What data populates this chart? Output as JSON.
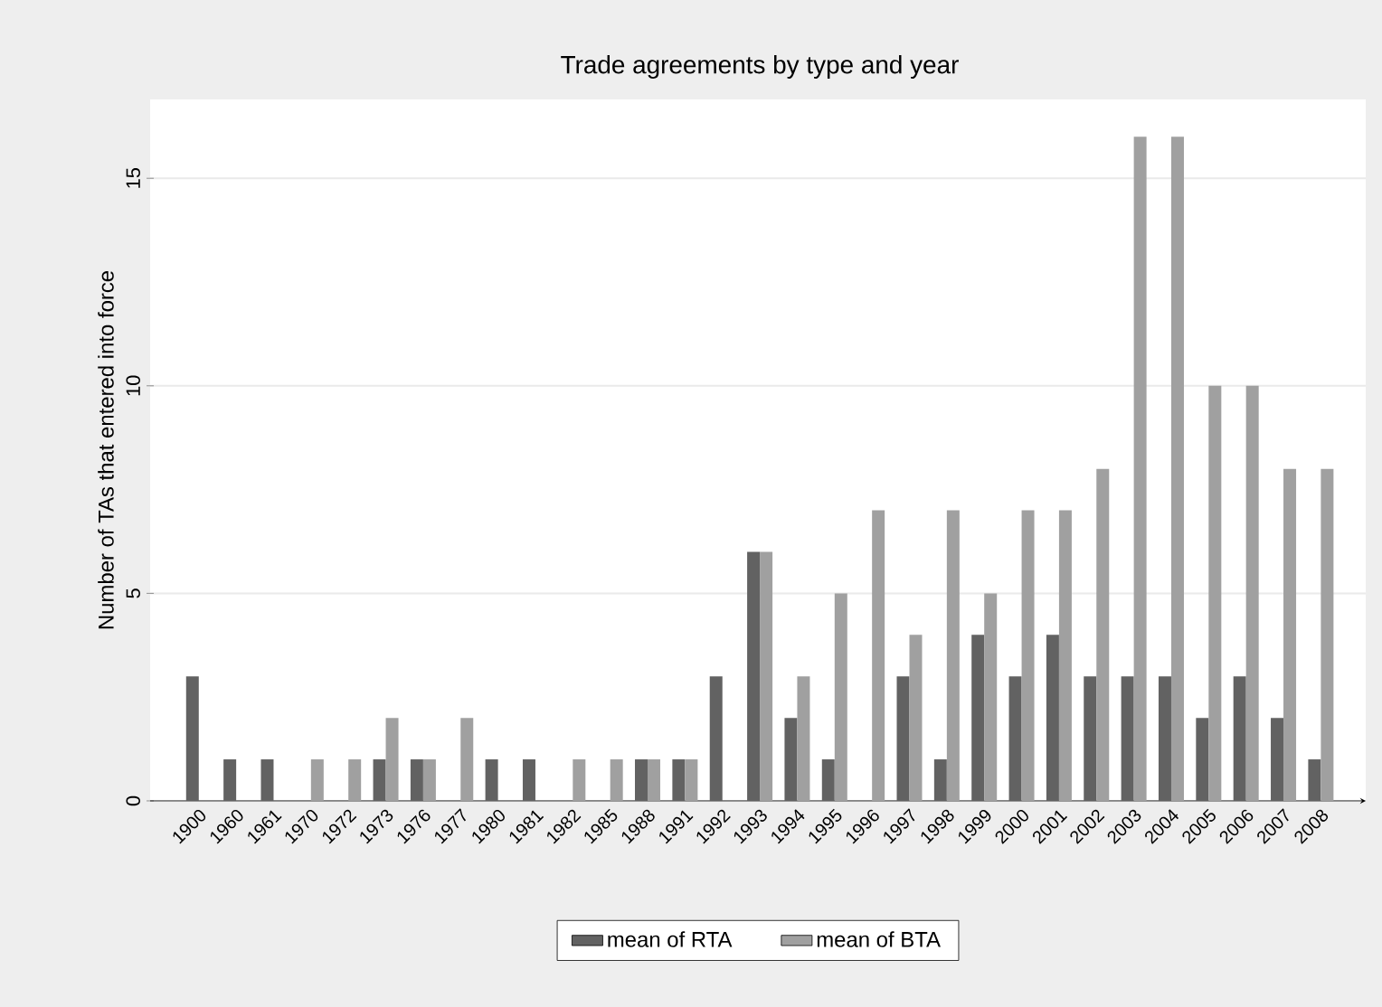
{
  "chart_data": {
    "type": "bar",
    "title": "Trade agreements by type and year",
    "ylabel": "Number of TAs that entered into force",
    "categories": [
      "1900",
      "1960",
      "1961",
      "1970",
      "1972",
      "1973",
      "1976",
      "1977",
      "1980",
      "1981",
      "1982",
      "1985",
      "1988",
      "1991",
      "1992",
      "1993",
      "1994",
      "1995",
      "1996",
      "1997",
      "1998",
      "1999",
      "2000",
      "2001",
      "2002",
      "2003",
      "2004",
      "2005",
      "2006",
      "2007",
      "2008"
    ],
    "series": [
      {
        "name": "mean of RTA",
        "color": "#626262",
        "values": [
          3,
          1,
          1,
          null,
          null,
          1,
          1,
          null,
          1,
          1,
          null,
          null,
          1,
          1,
          3,
          6,
          2,
          1,
          null,
          3,
          1,
          4,
          3,
          4,
          3,
          3,
          3,
          2,
          3,
          2,
          1
        ]
      },
      {
        "name": "mean of BTA",
        "color": "#a0a0a0",
        "values": [
          null,
          null,
          null,
          1,
          1,
          2,
          1,
          2,
          null,
          null,
          1,
          1,
          1,
          1,
          null,
          6,
          3,
          5,
          7,
          4,
          7,
          5,
          7,
          7,
          8,
          16,
          16,
          10,
          10,
          8,
          8
        ]
      }
    ],
    "ylim": [
      0,
      16.9
    ],
    "yticks": [
      0,
      5,
      10,
      15
    ],
    "grid": "y",
    "legend": "bottom"
  }
}
